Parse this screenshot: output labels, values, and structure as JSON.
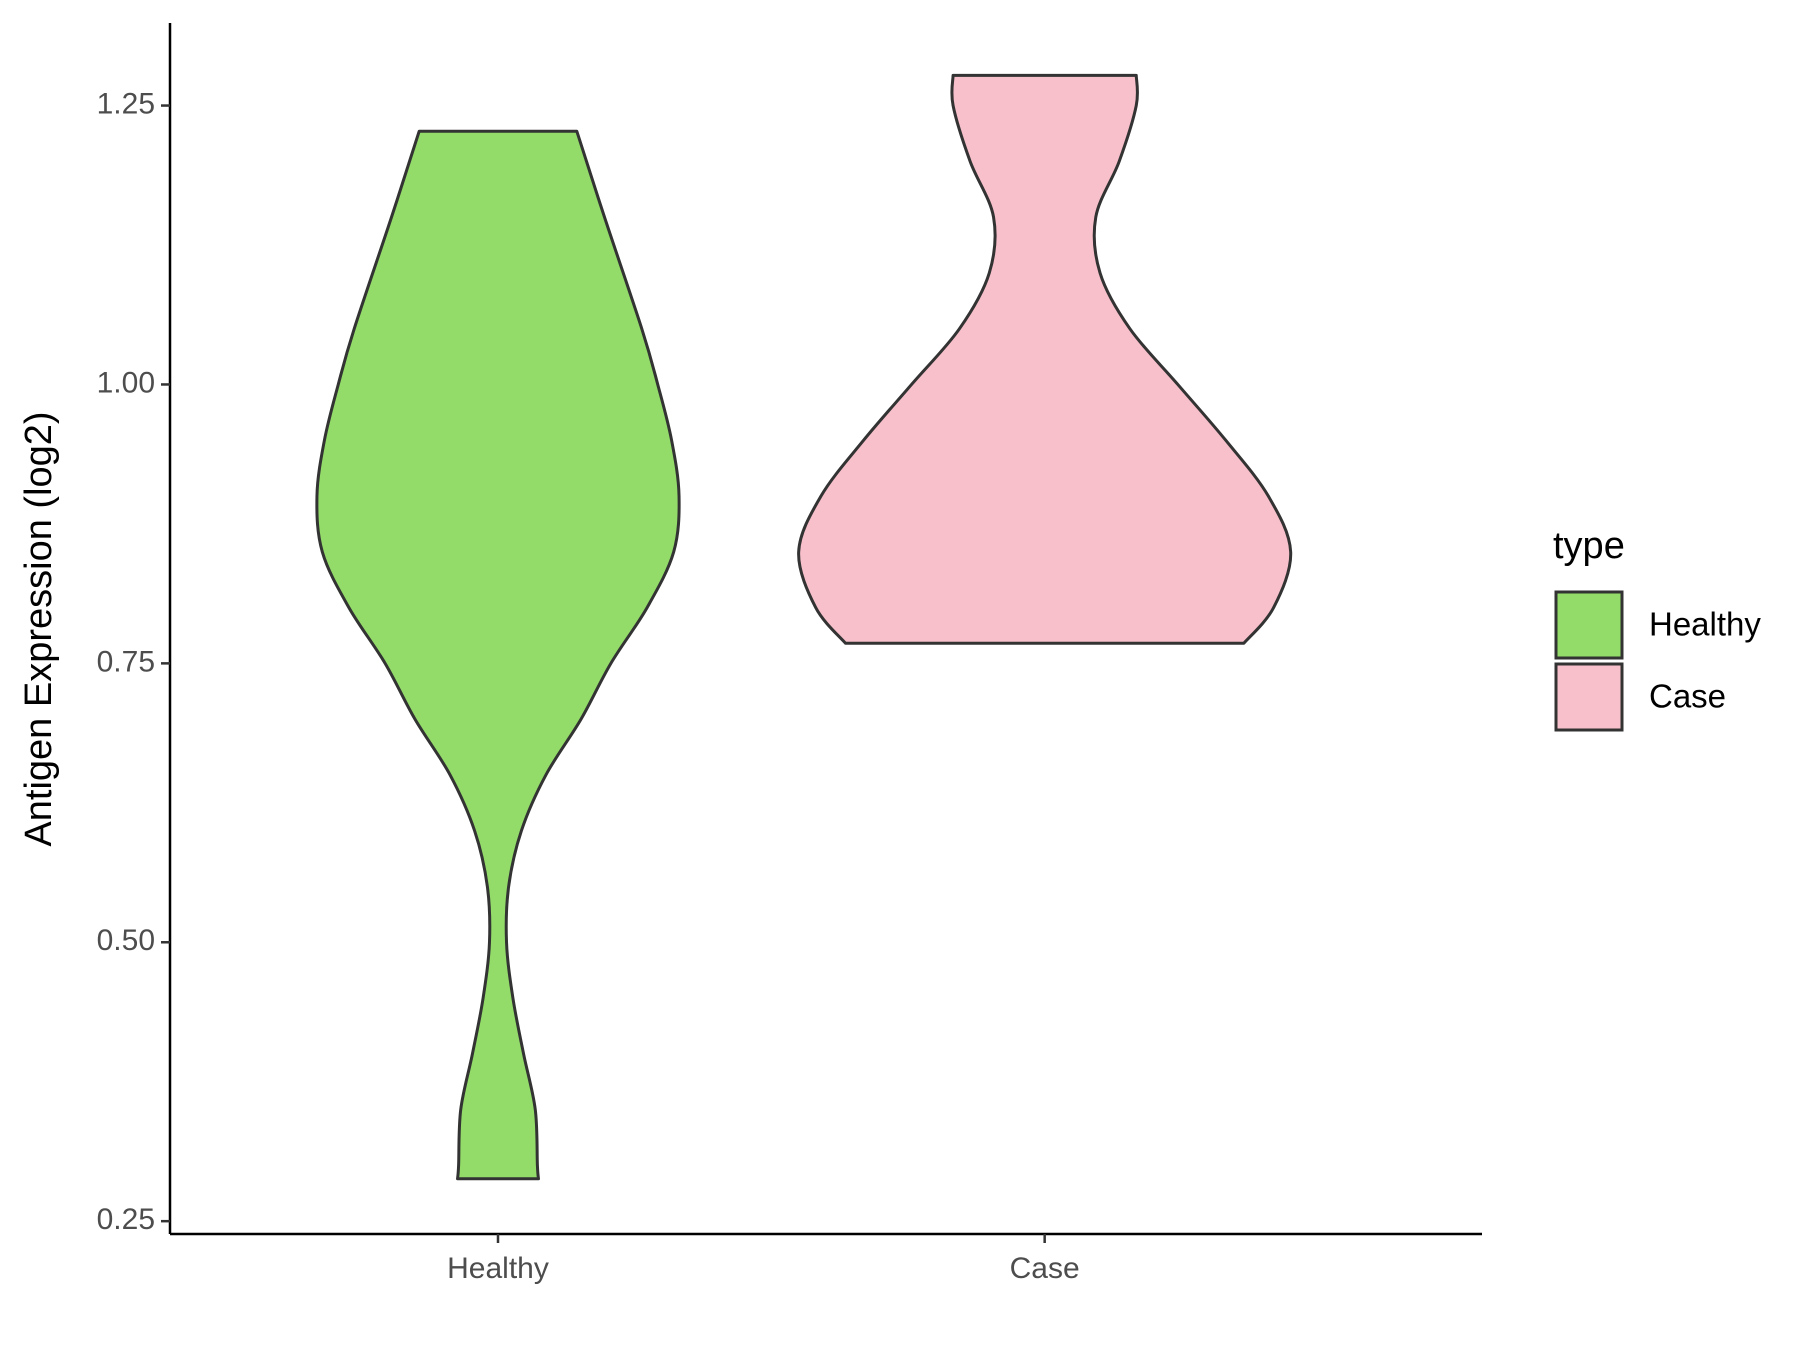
{
  "chart_data": {
    "type": "violin",
    "y_label": "Antigen Expression (log2)",
    "categories": [
      "Healthy",
      "Case"
    ],
    "legend_title": "type",
    "legend": "right",
    "edge_color": "#333333",
    "series": [
      {
        "name": "Healthy",
        "color": "#93dc6a",
        "y": [
          1.227,
          1.15,
          1.05,
          1.0,
          0.95,
          0.9,
          0.85,
          0.8,
          0.75,
          0.7,
          0.65,
          0.6,
          0.55,
          0.5,
          0.45,
          0.4,
          0.35,
          0.3,
          0.288
        ],
        "density": [
          74,
          100,
          135,
          150,
          163,
          170,
          165,
          140,
          106,
          78,
          45,
          22,
          10,
          8,
          14,
          24,
          35,
          37,
          38
        ]
      },
      {
        "name": "Case",
        "color": "#f7c0cb",
        "y": [
          1.277,
          1.25,
          1.2,
          1.15,
          1.1,
          1.05,
          1.0,
          0.95,
          0.9,
          0.85,
          0.8,
          0.768
        ],
        "density": [
          86,
          86,
          70,
          48,
          52,
          80,
          125,
          170,
          210,
          231,
          215,
          187
        ]
      }
    ],
    "ylim": [
      0.2385,
      1.324
    ],
    "yticks": [
      {
        "value": 0.25,
        "label": "0.25"
      },
      {
        "value": 0.5,
        "label": "0.50"
      },
      {
        "value": 0.75,
        "label": "0.75"
      },
      {
        "value": 1.0,
        "label": "1.00"
      },
      {
        "value": 1.25,
        "label": "1.25"
      }
    ]
  }
}
